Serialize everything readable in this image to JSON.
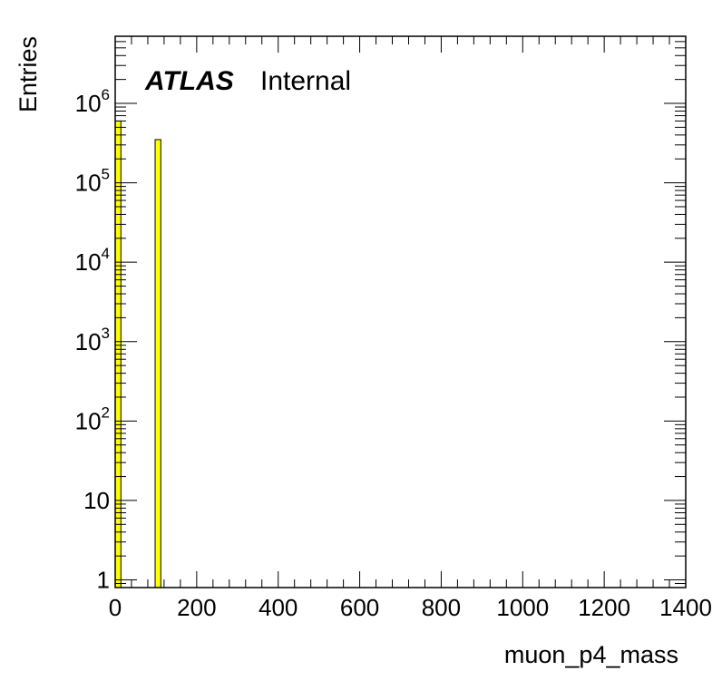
{
  "chart_data": {
    "type": "bar",
    "xlabel": "muon_p4_mass",
    "ylabel": "Entries",
    "xlim": [
      0,
      1400
    ],
    "ylim": [
      0.8,
      7000000
    ],
    "y_scale": "log",
    "bin_width": 14,
    "x_ticks": [
      "0",
      "200",
      "400",
      "600",
      "800",
      "1000",
      "1200",
      "1400"
    ],
    "y_ticks": [
      {
        "value": 1,
        "base": "1",
        "exp": ""
      },
      {
        "value": 10,
        "base": "10",
        "exp": ""
      },
      {
        "value": 100,
        "base": "10",
        "exp": "2"
      },
      {
        "value": 1000,
        "base": "10",
        "exp": "3"
      },
      {
        "value": 10000,
        "base": "10",
        "exp": "4"
      },
      {
        "value": 100000,
        "base": "10",
        "exp": "5"
      },
      {
        "value": 1000000,
        "base": "10",
        "exp": "6"
      }
    ],
    "bins": [
      {
        "x_low": 0,
        "x_high": 14,
        "value": 600000
      },
      {
        "x_low": 98,
        "x_high": 112,
        "value": 350000
      }
    ],
    "fill_color": "#ffff00",
    "edge_color": "#000000",
    "grid": false
  },
  "labels": {
    "atlas": "ATLAS",
    "internal": "Internal"
  }
}
